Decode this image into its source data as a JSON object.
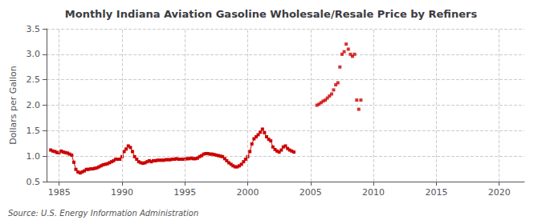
{
  "chart_data": {
    "type": "line",
    "title": "Monthly Indiana Aviation Gasoline Wholesale/Resale Price by Refiners",
    "ylabel": "Dollars per Gallon",
    "annotations": [
      "Source: U.S. Energy Information Administration"
    ],
    "xlim": [
      1984,
      2022
    ],
    "ylim": [
      0.5,
      3.5
    ],
    "xticks": [
      1985,
      1990,
      1995,
      2000,
      2005,
      2010,
      2015,
      2020
    ],
    "yticks": [
      0.5,
      {
        "value": 1.0,
        "label": "1.0"
      },
      1.5,
      {
        "value": 2.0,
        "label": "2.0"
      },
      2.5,
      {
        "value": 3.0,
        "label": "3.0"
      },
      3.5
    ],
    "grid": true,
    "color": "#cc0000",
    "marker": "square",
    "series": [
      {
        "type": "line",
        "x": [
          1984.33,
          1984.5,
          1984.67,
          1984.83,
          1985.0,
          1985.17,
          1985.33,
          1985.5,
          1985.67,
          1985.83,
          1986.0,
          1986.17,
          1986.33,
          1986.5,
          1986.67,
          1986.83,
          1987.0,
          1987.17,
          1987.33,
          1987.5,
          1987.67,
          1987.83,
          1988.0,
          1988.17,
          1988.33,
          1988.5,
          1988.67,
          1988.83,
          1989.0,
          1989.17,
          1989.33,
          1989.5,
          1989.67,
          1989.83,
          1990.0,
          1990.17,
          1990.33,
          1990.5,
          1990.67,
          1990.83,
          1991.0,
          1991.17,
          1991.33,
          1991.5,
          1991.67,
          1991.83,
          1992.0,
          1992.17,
          1992.33,
          1992.5,
          1992.67,
          1992.83,
          1993.0,
          1993.17,
          1993.33,
          1993.5,
          1993.67,
          1993.83,
          1994.0,
          1994.17,
          1994.33,
          1994.5,
          1994.67,
          1994.83,
          1995.0,
          1995.17,
          1995.33,
          1995.5,
          1995.67,
          1995.83,
          1996.0,
          1996.17,
          1996.33,
          1996.5,
          1996.67,
          1996.83,
          1997.0,
          1997.17,
          1997.33,
          1997.5,
          1997.67,
          1997.83,
          1998.0,
          1998.17,
          1998.33,
          1998.5,
          1998.67,
          1998.83,
          1999.0,
          1999.17,
          1999.33,
          1999.5,
          1999.67,
          1999.83,
          2000.0,
          2000.17,
          2000.33,
          2000.5,
          2000.67,
          2000.83,
          2001.0,
          2001.17,
          2001.33,
          2001.5,
          2001.67,
          2001.83,
          2002.0,
          2002.17,
          2002.33,
          2002.5
        ],
        "values": [
          1.12,
          1.1,
          1.09,
          1.07,
          1.07,
          1.1,
          1.08,
          1.07,
          1.06,
          1.04,
          1.02,
          0.88,
          0.74,
          0.69,
          0.67,
          0.69,
          0.71,
          0.74,
          0.74,
          0.75,
          0.75,
          0.76,
          0.77,
          0.79,
          0.81,
          0.83,
          0.84,
          0.85,
          0.87,
          0.89,
          0.91,
          0.94,
          0.94,
          0.94,
          0.99,
          1.09,
          1.14,
          1.2,
          1.17,
          1.09,
          0.99,
          0.94,
          0.89,
          0.87,
          0.86,
          0.87,
          0.89,
          0.91,
          0.89,
          0.91,
          0.91,
          0.92,
          0.92,
          0.92,
          0.92,
          0.93,
          0.93,
          0.93,
          0.94,
          0.94,
          0.95,
          0.94,
          0.94,
          0.94,
          0.94,
          0.95,
          0.95,
          0.96,
          0.95,
          0.95,
          0.96,
          0.99,
          1.01,
          1.04,
          1.05,
          1.05,
          1.04,
          1.04,
          1.03,
          1.02,
          1.01,
          1.0,
          0.99,
          0.95,
          0.91,
          0.87,
          0.84,
          0.81,
          0.79,
          0.79,
          0.81,
          0.84,
          0.89,
          0.94,
          0.99,
          1.09,
          1.24,
          1.34,
          1.38,
          1.42,
          1.47,
          1.53,
          1.46,
          1.38,
          1.33,
          1.3,
          1.18,
          1.13,
          1.1,
          1.08
        ]
      },
      {
        "type": "line",
        "x": [
          2002.67,
          2002.83,
          2003.0,
          2003.17,
          2003.33,
          2003.5,
          2003.67
        ],
        "values": [
          1.12,
          1.18,
          1.2,
          1.15,
          1.12,
          1.1,
          1.08
        ]
      },
      {
        "type": "scatter",
        "x": [
          2005.5,
          2005.67,
          2005.83,
          2006.0,
          2006.17,
          2006.33,
          2006.5,
          2006.67,
          2006.83,
          2007.0,
          2007.17,
          2007.33,
          2007.5,
          2007.67,
          2007.83,
          2008.0,
          2008.17,
          2008.33,
          2008.5,
          2008.67,
          2008.83,
          2009.0
        ],
        "values": [
          2.0,
          2.02,
          2.05,
          2.08,
          2.1,
          2.14,
          2.18,
          2.22,
          2.3,
          2.4,
          2.44,
          2.75,
          3.0,
          3.05,
          3.2,
          3.1,
          3.0,
          2.96,
          3.0,
          2.1,
          1.92,
          2.1
        ]
      }
    ]
  }
}
